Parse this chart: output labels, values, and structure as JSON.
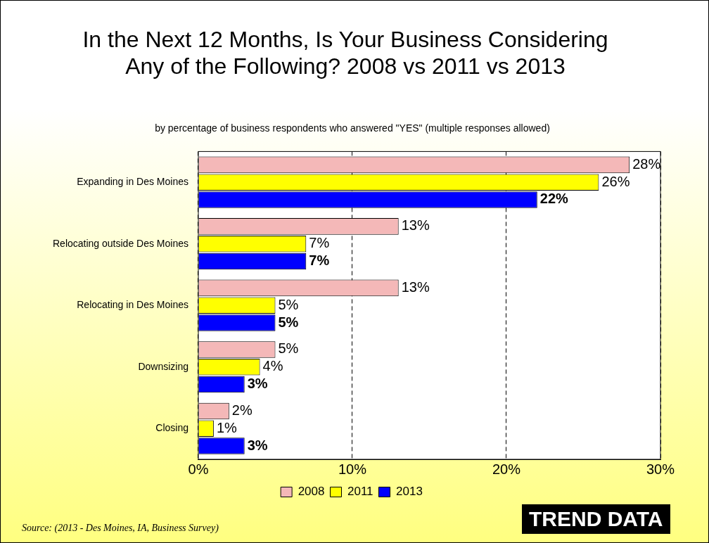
{
  "chart_data": {
    "type": "bar",
    "orientation": "horizontal",
    "title": "In the Next 12 Months, Is Your Business Considering Any of the Following? 2008 vs 2011 vs 2013",
    "subtitle": "by percentage of business respondents who answered \"YES\" (multiple responses allowed)",
    "categories": [
      "Expanding in Des Moines",
      "Relocating outside Des Moines",
      "Relocating in Des Moines",
      "Downsizing",
      "Closing"
    ],
    "series": [
      {
        "name": "2008",
        "color": "#f4b8b8",
        "values": [
          28,
          13,
          13,
          5,
          2
        ],
        "value_labels": [
          "28%",
          "13%",
          "13%",
          "5%",
          "2%"
        ]
      },
      {
        "name": "2011",
        "color": "#ffff00",
        "values": [
          26,
          7,
          5,
          4,
          1
        ],
        "value_labels": [
          "26%",
          "7%",
          "5%",
          "4%",
          "1%"
        ]
      },
      {
        "name": "2013",
        "color": "#0000ff",
        "values": [
          22,
          7,
          5,
          3,
          3
        ],
        "value_labels": [
          "22%",
          "7%",
          "5%",
          "3%",
          "3%"
        ]
      }
    ],
    "xlim": [
      0,
      30
    ],
    "xticks": [
      {
        "value": 0,
        "label": "0%"
      },
      {
        "value": 10,
        "label": "10%"
      },
      {
        "value": 20,
        "label": "20%"
      },
      {
        "value": 30,
        "label": "30%"
      }
    ],
    "grid": "x",
    "legend": "bottom",
    "annotations": [
      "Source: (2013 - Des Moines, IA, Business Survey)",
      "TREND DATA"
    ]
  }
}
